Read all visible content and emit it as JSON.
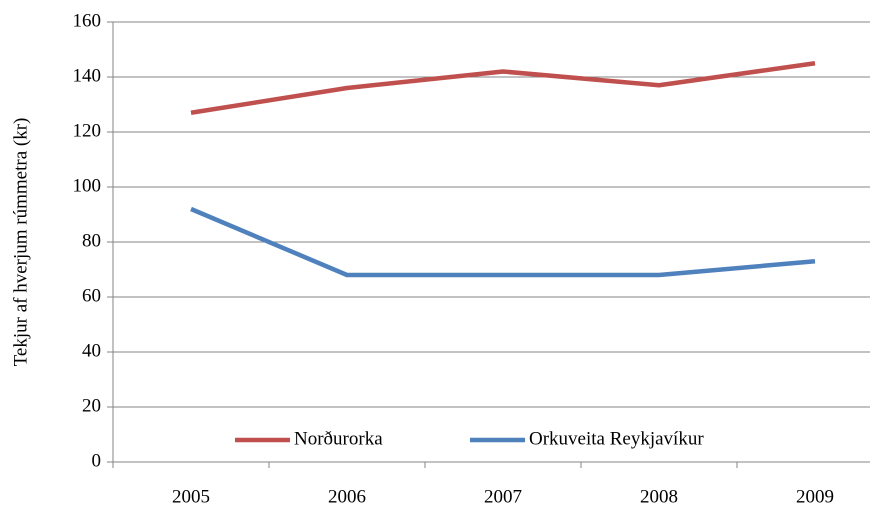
{
  "chart_data": {
    "type": "line",
    "y_label": "Tekjur af hverjum rúmmetra (kr)",
    "categories": [
      "2005",
      "2006",
      "2007",
      "2008",
      "2009"
    ],
    "series": [
      {
        "name": "Norðurorka",
        "color": "#c0504d",
        "values": [
          127,
          136,
          142,
          137,
          145
        ]
      },
      {
        "name": "Orkuveita Reykjavíkur",
        "color": "#4f81bd",
        "values": [
          92,
          68,
          68,
          68,
          73
        ]
      }
    ],
    "ylim": [
      0,
      160
    ],
    "yticks": [
      0,
      20,
      40,
      60,
      80,
      100,
      120,
      140,
      160
    ],
    "grid": true,
    "legend": "bottom"
  }
}
